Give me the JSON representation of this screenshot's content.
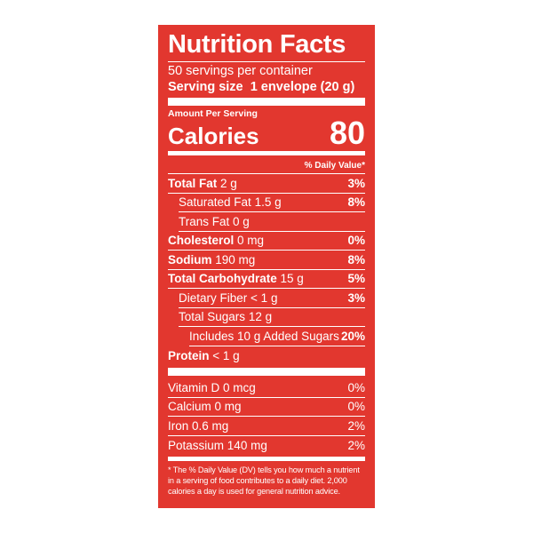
{
  "title": "Nutrition Facts",
  "servings": "50 servings per container",
  "serving_size": {
    "label": "Serving size",
    "value": "1 envelope (20 g)"
  },
  "amount_per_serving": "Amount Per Serving",
  "calories": {
    "label": "Calories",
    "value": "80"
  },
  "dv_header": "% Daily Value*",
  "nutrients": [
    {
      "name": "Total Fat",
      "amount": "2 g",
      "dv": "3%",
      "sub": [
        {
          "name": "Saturated Fat",
          "amount": "1.5 g",
          "dv": "8%"
        },
        {
          "name": "Trans Fat",
          "amount": "0 g"
        }
      ]
    },
    {
      "name": "Cholesterol",
      "amount": "0 mg",
      "dv": "0%"
    },
    {
      "name": "Sodium",
      "amount": "190 mg",
      "dv": "8%"
    },
    {
      "name": "Total Carbohydrate",
      "amount": "15 g",
      "dv": "5%",
      "sub": [
        {
          "name": "Dietary Fiber",
          "amount": "< 1 g",
          "dv": "3%"
        },
        {
          "name": "Total Sugars",
          "amount": "12 g",
          "sub": [
            {
              "text": "Includes 10 g Added Sugars",
              "dv": "20%"
            }
          ]
        }
      ]
    },
    {
      "name": "Protein",
      "amount": "< 1 g"
    }
  ],
  "vitamins": [
    {
      "name": "Vitamin D",
      "amount": "0 mcg",
      "dv": "0%"
    },
    {
      "name": "Calcium",
      "amount": "0 mg",
      "dv": "0%"
    },
    {
      "name": "Iron",
      "amount": "0.6 mg",
      "dv": "2%"
    },
    {
      "name": "Potassium",
      "amount": "140 mg",
      "dv": "2%"
    }
  ],
  "footnote": "* The % Daily Value (DV) tells you how much a nutrient in a serving of food contributes to a daily diet. 2,000 calories a day is used for general nutrition advice."
}
